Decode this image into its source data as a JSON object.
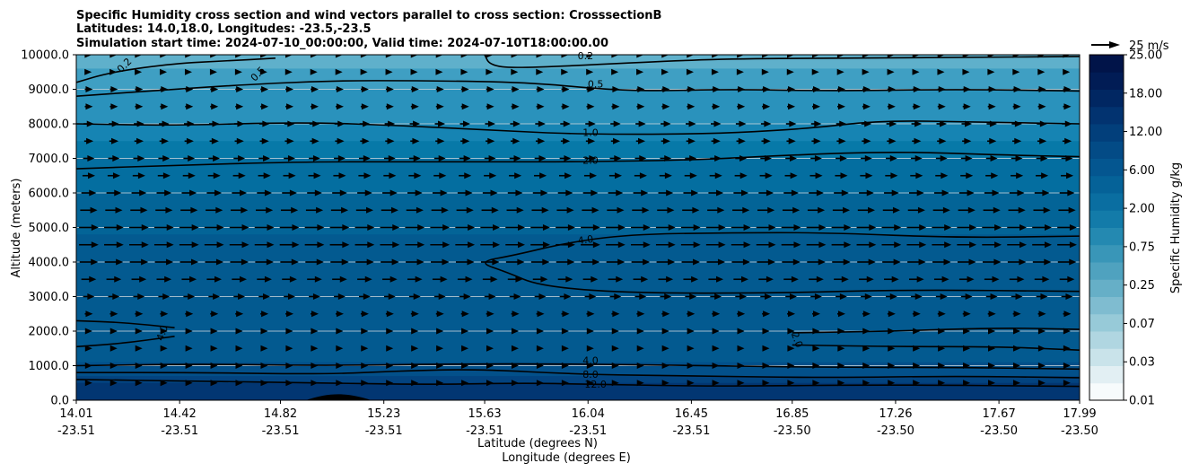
{
  "chart_data": {
    "type": "contourf-quiver",
    "title_lines": [
      "Specific Humidity cross section and wind vectors parallel to cross section: CrosssectionB",
      "Latitudes: 14.0,18.0, Longitudes: -23.5,-23.5",
      "Simulation start time: 2024-07-10_00:00:00, Valid time: 2024-07-10T18:00:00.00"
    ],
    "ylabel": "Altitude (meters)",
    "xlabel_lat": "Latitude (degrees N)",
    "xlabel_lon": "Longitude (degrees E)",
    "ylim": [
      0,
      10000
    ],
    "y_ticks": [
      "0.0",
      "1000.0",
      "2000.0",
      "3000.0",
      "4000.0",
      "5000.0",
      "6000.0",
      "7000.0",
      "8000.0",
      "9000.0",
      "10000.0"
    ],
    "x_range": [
      14.01,
      17.99
    ],
    "x_ticks_lat": [
      "14.01",
      "14.42",
      "14.82",
      "15.23",
      "15.63",
      "16.04",
      "16.45",
      "16.85",
      "17.26",
      "17.67",
      "17.99"
    ],
    "x_ticks_lon": [
      "-23.51",
      "-23.51",
      "-23.51",
      "-23.51",
      "-23.51",
      "-23.51",
      "-23.51",
      "-23.50",
      "-23.50",
      "-23.50",
      "-23.50"
    ],
    "x_tick_values": [
      14.01,
      14.42,
      14.82,
      15.23,
      15.63,
      16.04,
      16.45,
      16.85,
      17.26,
      17.67,
      17.99
    ],
    "colorbar": {
      "label": "Specific Humidity g/kg",
      "tick_labels": [
        "0.01",
        "0.03",
        "0.07",
        "0.25",
        "0.75",
        "2.00",
        "6.00",
        "12.00",
        "18.00",
        "25.00"
      ],
      "colors": [
        "#f7fbfc",
        "#e2eff3",
        "#c9e3ea",
        "#b0d6e1",
        "#97cad8",
        "#7fbcd0",
        "#66afc7",
        "#4fa2bf",
        "#3996b8",
        "#2489b1",
        "#137ba9",
        "#0a6ea1",
        "#056298",
        "#045690",
        "#034b86",
        "#023f7b",
        "#023370",
        "#012762",
        "#011c55",
        "#011449"
      ]
    },
    "wind_key": {
      "label": "25 m/s",
      "speed": 25
    },
    "humidity_bands": [
      {
        "qmin": 0.15,
        "top_alt": 10000,
        "color": "#5fb0cb"
      },
      {
        "qmin": 0.3,
        "top_alt": 9600,
        "color": "#3f9fc3"
      },
      {
        "qmin": 0.5,
        "top_alt": 9000,
        "color": "#2a92bc"
      },
      {
        "qmin": 1.0,
        "top_alt": 8000,
        "color": "#1684b3"
      },
      {
        "qmin": 1.5,
        "top_alt": 7500,
        "color": "#0779a8"
      },
      {
        "qmin": 2.0,
        "top_alt": 7000,
        "color": "#046ea0"
      },
      {
        "qmin": 3.0,
        "top_alt": 6000,
        "color": "#036497"
      },
      {
        "qmin": 4.0,
        "top_alt": 4800,
        "color": "#035a90"
      },
      {
        "qmin": 6.0,
        "top_alt": 1100,
        "color": "#03508a"
      },
      {
        "qmin": 8.0,
        "top_alt": 700,
        "color": "#03437f"
      },
      {
        "qmin": 12.0,
        "top_alt": 500,
        "color": "#023672"
      }
    ],
    "contours": [
      {
        "level": "0.2",
        "points": [
          [
            14.01,
            9200
          ],
          [
            14.15,
            9500
          ],
          [
            14.4,
            9750
          ],
          [
            14.6,
            9820
          ],
          [
            14.8,
            9900
          ]
        ]
      },
      {
        "level": "0.2",
        "points": [
          [
            15.63,
            10000
          ],
          [
            15.65,
            9700
          ],
          [
            15.75,
            9600
          ],
          [
            16.3,
            9800
          ],
          [
            16.6,
            9880
          ],
          [
            17.0,
            9900
          ],
          [
            17.5,
            9920
          ],
          [
            17.99,
            9950
          ]
        ]
      },
      {
        "level": "0.5",
        "points": [
          [
            14.01,
            8800
          ],
          [
            14.3,
            8950
          ],
          [
            14.6,
            9100
          ],
          [
            15.0,
            9250
          ],
          [
            15.4,
            9250
          ],
          [
            15.8,
            9200
          ],
          [
            16.1,
            9000
          ],
          [
            16.3,
            8950
          ],
          [
            16.6,
            9000
          ],
          [
            17.0,
            8950
          ],
          [
            17.5,
            9000
          ],
          [
            17.99,
            8950
          ]
        ]
      },
      {
        "level": "1.0",
        "points": [
          [
            14.01,
            8000
          ],
          [
            14.4,
            7950
          ],
          [
            14.9,
            8050
          ],
          [
            15.3,
            7950
          ],
          [
            15.7,
            7800
          ],
          [
            16.0,
            7700
          ],
          [
            16.5,
            7700
          ],
          [
            16.9,
            7850
          ],
          [
            17.2,
            8100
          ],
          [
            17.6,
            8050
          ],
          [
            17.99,
            8000
          ]
        ]
      },
      {
        "level": "2.0",
        "points": [
          [
            14.01,
            6700
          ],
          [
            14.4,
            6800
          ],
          [
            14.9,
            6900
          ],
          [
            15.3,
            6900
          ],
          [
            15.7,
            6900
          ],
          [
            16.0,
            6900
          ],
          [
            16.45,
            6950
          ],
          [
            16.85,
            7100
          ],
          [
            17.26,
            7200
          ],
          [
            17.67,
            7100
          ],
          [
            17.99,
            7050
          ]
        ]
      },
      {
        "level": "4.0",
        "points": [
          [
            17.99,
            4750
          ],
          [
            17.5,
            4700
          ],
          [
            17.0,
            4850
          ],
          [
            16.6,
            4850
          ],
          [
            16.2,
            4800
          ],
          [
            15.95,
            4550
          ],
          [
            15.75,
            4200
          ],
          [
            15.6,
            4000
          ],
          [
            15.72,
            3700
          ],
          [
            15.85,
            3300
          ],
          [
            16.2,
            3100
          ],
          [
            16.8,
            3100
          ],
          [
            17.3,
            3200
          ],
          [
            17.99,
            3150
          ]
        ]
      },
      {
        "level": "4.0",
        "points": [
          [
            14.01,
            2300
          ],
          [
            14.2,
            2250
          ],
          [
            14.4,
            2100
          ]
        ]
      },
      {
        "level": "4.0",
        "points": [
          [
            14.01,
            1550
          ],
          [
            14.2,
            1650
          ],
          [
            14.4,
            1850
          ]
        ]
      },
      {
        "level": "2.0",
        "points": [
          [
            16.85,
            1950
          ],
          [
            17.26,
            2000
          ],
          [
            17.67,
            2100
          ],
          [
            17.99,
            2050
          ]
        ]
      },
      {
        "level": "2.0",
        "points": [
          [
            16.85,
            1600
          ],
          [
            17.26,
            1550
          ],
          [
            17.67,
            1550
          ],
          [
            17.99,
            1450
          ]
        ]
      },
      {
        "level": "4.0",
        "points": [
          [
            14.01,
            1000
          ],
          [
            14.5,
            1050
          ],
          [
            15.0,
            1000
          ],
          [
            15.5,
            1050
          ],
          [
            16.0,
            1050
          ],
          [
            16.5,
            1000
          ],
          [
            17.0,
            950
          ],
          [
            17.5,
            950
          ],
          [
            17.99,
            900
          ]
        ]
      },
      {
        "level": "8.0",
        "points": [
          [
            14.01,
            800
          ],
          [
            14.5,
            800
          ],
          [
            15.0,
            750
          ],
          [
            15.3,
            850
          ],
          [
            15.6,
            900
          ],
          [
            16.0,
            750
          ],
          [
            16.45,
            700
          ],
          [
            17.0,
            650
          ],
          [
            17.5,
            700
          ],
          [
            17.99,
            650
          ]
        ]
      },
      {
        "level": "12.0",
        "points": [
          [
            14.01,
            600
          ],
          [
            14.5,
            550
          ],
          [
            15.0,
            500
          ],
          [
            15.4,
            450
          ],
          [
            15.8,
            500
          ],
          [
            16.1,
            450
          ],
          [
            16.6,
            400
          ],
          [
            17.2,
            450
          ],
          [
            17.99,
            400
          ]
        ]
      }
    ],
    "contour_labels": [
      {
        "text": "0.2",
        "x": 14.2,
        "y": 9700,
        "rotate": -45
      },
      {
        "text": "0.5",
        "x": 14.73,
        "y": 9450,
        "rotate": -45
      },
      {
        "text": "0.2",
        "x": 16.03,
        "y": 9980,
        "rotate": 0
      },
      {
        "text": "0.5",
        "x": 16.07,
        "y": 9150,
        "rotate": 0
      },
      {
        "text": "1.0",
        "x": 16.05,
        "y": 7750,
        "rotate": 0
      },
      {
        "text": "2.0",
        "x": 16.05,
        "y": 6950,
        "rotate": 0
      },
      {
        "text": "4.0",
        "x": 16.03,
        "y": 4650,
        "rotate": -8
      },
      {
        "text": "4.0",
        "x": 14.35,
        "y": 1950,
        "rotate": -70
      },
      {
        "text": "2.0",
        "x": 16.87,
        "y": 1750,
        "rotate": 70
      },
      {
        "text": "4.0",
        "x": 16.05,
        "y": 1150,
        "rotate": 0
      },
      {
        "text": "8.0",
        "x": 16.05,
        "y": 750,
        "rotate": 0
      },
      {
        "text": "12.0",
        "x": 16.07,
        "y": 470,
        "rotate": 0
      }
    ],
    "terrain": {
      "x_start": 14.92,
      "x_end": 15.18,
      "peak_x": 15.05,
      "peak_alt": 230
    },
    "wind_profile": [
      {
        "alt": 500,
        "speed": 6
      },
      {
        "alt": 1000,
        "speed": 6
      },
      {
        "alt": 1500,
        "speed": 6
      },
      {
        "alt": 2000,
        "speed": 6
      },
      {
        "alt": 2500,
        "speed": 7
      },
      {
        "alt": 3000,
        "speed": 10
      },
      {
        "alt": 3500,
        "speed": 13
      },
      {
        "alt": 4000,
        "speed": 16
      },
      {
        "alt": 4500,
        "speed": 17
      },
      {
        "alt": 5000,
        "speed": 17
      },
      {
        "alt": 5500,
        "speed": 15
      },
      {
        "alt": 6000,
        "speed": 13
      },
      {
        "alt": 6500,
        "speed": 11
      },
      {
        "alt": 7000,
        "speed": 10
      },
      {
        "alt": 7500,
        "speed": 8
      },
      {
        "alt": 8000,
        "speed": 9
      },
      {
        "alt": 8500,
        "speed": 7
      },
      {
        "alt": 9000,
        "speed": 7
      },
      {
        "alt": 9500,
        "speed": 5
      },
      {
        "alt": 10000,
        "speed": 4
      }
    ],
    "wind_columns": 40
  }
}
